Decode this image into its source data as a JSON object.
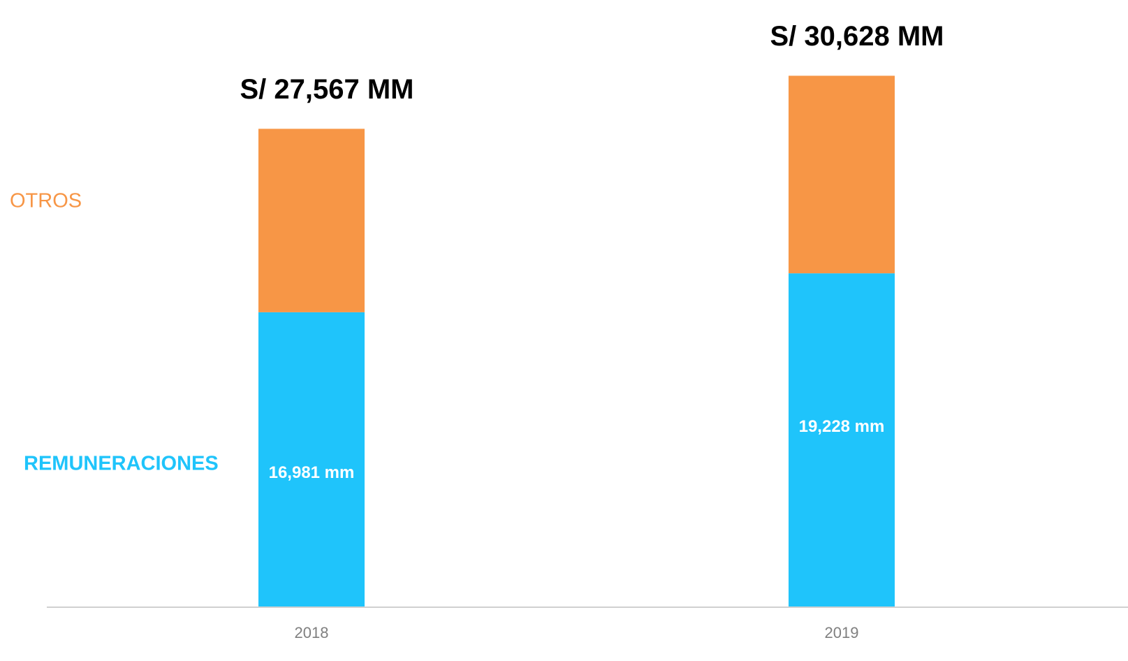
{
  "chart_data": {
    "type": "stacked_bar",
    "categories": [
      "2018",
      "2019"
    ],
    "series": [
      {
        "name": "REMUNERACIONES",
        "color": "#1fc4fb",
        "values": [
          16981,
          19228
        ],
        "value_labels": [
          "16,981 mm",
          "19,228 mm"
        ]
      },
      {
        "name": "OTROS",
        "color": "#f79646",
        "values": [
          10586,
          11400
        ]
      }
    ],
    "totals": [
      27567,
      30628
    ],
    "total_labels": [
      "S/ 27,567 MM",
      "S/ 30,628 MM"
    ],
    "ylim": [
      0,
      35000
    ]
  }
}
